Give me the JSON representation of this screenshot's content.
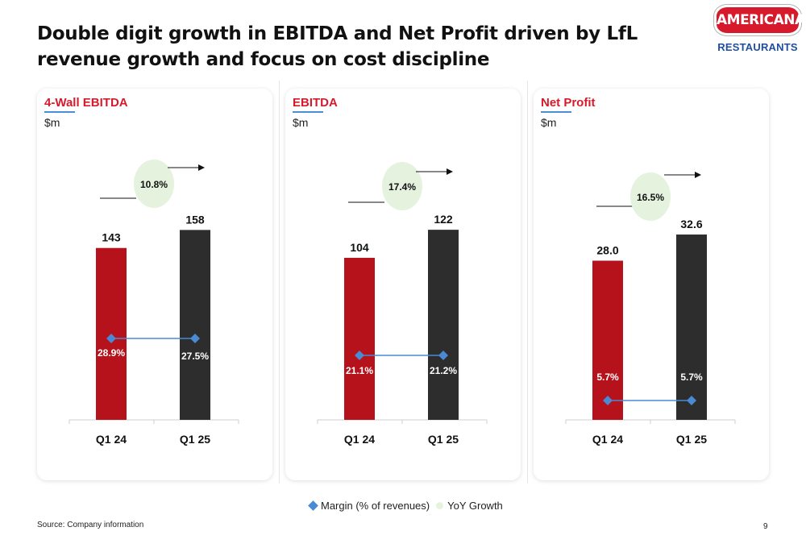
{
  "title": "Double digit growth in EBITDA and Net Profit driven by LfL revenue growth and focus on cost discipline",
  "logo": {
    "name": "AMERICANA",
    "sub": "RESTAURANTS",
    "brand_color": "#d71a2b",
    "sub_color": "#1f4fa0"
  },
  "legend": {
    "margin_label": "Margin (% of revenues)",
    "growth_label": "YoY Growth"
  },
  "footer": {
    "source": "Source: Company information",
    "page": "9"
  },
  "colors": {
    "q1_24": "#b5121b",
    "q1_25": "#2d2d2d",
    "margin": "#4a8ad4",
    "growth_bubble": "#e4f2de"
  },
  "chart_data": [
    {
      "type": "bar",
      "title": "4-Wall EBITDA",
      "unit": "$m",
      "categories": [
        "Q1 24",
        "Q1 25"
      ],
      "values": [
        143,
        158
      ],
      "value_labels": [
        "143",
        "158"
      ],
      "margin": [
        28.9,
        27.5
      ],
      "margin_labels": [
        "28.9%",
        "27.5%"
      ],
      "yoy_growth": "10.8%",
      "ylim": [
        0,
        175
      ]
    },
    {
      "type": "bar",
      "title": "EBITDA",
      "unit": "$m",
      "categories": [
        "Q1 24",
        "Q1 25"
      ],
      "values": [
        104,
        122
      ],
      "value_labels": [
        "104",
        "122"
      ],
      "margin": [
        21.1,
        21.2
      ],
      "margin_labels": [
        "21.1%",
        "21.2%"
      ],
      "yoy_growth": "17.4%",
      "ylim": [
        0,
        135
      ]
    },
    {
      "type": "bar",
      "title": "Net Profit",
      "unit": "$m",
      "categories": [
        "Q1 24",
        "Q1 25"
      ],
      "values": [
        28.0,
        32.6
      ],
      "value_labels": [
        "28.0",
        "32.6"
      ],
      "margin": [
        5.7,
        5.7
      ],
      "margin_labels": [
        "5.7%",
        "5.7%"
      ],
      "yoy_growth": "16.5%",
      "ylim": [
        0,
        37
      ]
    }
  ]
}
